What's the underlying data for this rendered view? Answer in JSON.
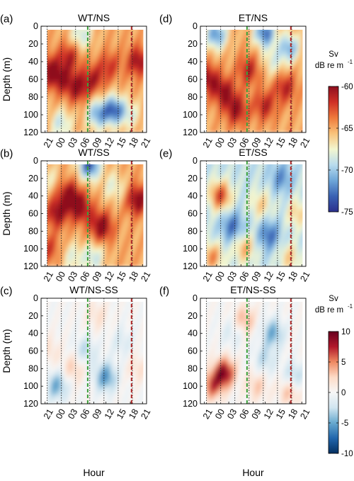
{
  "chart_data": {
    "type": "heatmap",
    "x_axis_label": "Hour",
    "y_axis_label": "Depth (m)",
    "x_tick_labels": [
      "21",
      "00",
      "03",
      "06",
      "09",
      "12",
      "15",
      "18",
      "21"
    ],
    "x_tick_hours": [
      21,
      24,
      27,
      30,
      33,
      36,
      39,
      42,
      45
    ],
    "x_range_hours": [
      20,
      46
    ],
    "y_range_m": [
      0,
      120
    ],
    "y_ticks": [
      "0",
      "20",
      "40",
      "60",
      "80",
      "100",
      "120"
    ],
    "y_tick_values": [
      0,
      20,
      40,
      60,
      80,
      100,
      120
    ],
    "vertical_dotted_hours": [
      21.5,
      25,
      28.5,
      32,
      35.5,
      39,
      42.5
    ],
    "green_dashed_hour": 31.5,
    "red_dashed_hour": 42.3,
    "panels": [
      {
        "letter": "(a)",
        "title": "WT/NS",
        "colorbar": "sv",
        "mean_sv": -65,
        "blobs": [
          {
            "t": 22,
            "d": 50,
            "v": 5
          },
          {
            "t": 25,
            "d": 60,
            "v": 4
          },
          {
            "t": 27,
            "d": 35,
            "v": 4
          },
          {
            "t": 29,
            "d": 70,
            "v": 5
          },
          {
            "t": 33,
            "d": 60,
            "v": 4
          },
          {
            "t": 37,
            "d": 45,
            "v": 3
          },
          {
            "t": 44,
            "d": 40,
            "v": 5
          },
          {
            "t": 38,
            "d": 95,
            "v": -8
          },
          {
            "t": 34,
            "d": 100,
            "v": -6
          },
          {
            "t": 25,
            "d": 110,
            "v": -4
          },
          {
            "t": 30,
            "d": 10,
            "v": -4
          },
          {
            "t": 42,
            "d": 100,
            "v": -3
          }
        ]
      },
      {
        "letter": "(b)",
        "title": "WT/SS",
        "colorbar": "sv",
        "mean_sv": -65,
        "blobs": [
          {
            "t": 27,
            "d": 40,
            "v": 6
          },
          {
            "t": 24,
            "d": 60,
            "v": 5
          },
          {
            "t": 30,
            "d": 55,
            "v": 5
          },
          {
            "t": 35,
            "d": 75,
            "v": 6
          },
          {
            "t": 44,
            "d": 45,
            "v": 6
          },
          {
            "t": 22,
            "d": 100,
            "v": 3
          },
          {
            "t": 32,
            "d": 5,
            "v": -9
          },
          {
            "t": 38,
            "d": 30,
            "v": -3
          },
          {
            "t": 28,
            "d": 110,
            "v": -3
          },
          {
            "t": 33,
            "d": 110,
            "v": -4
          },
          {
            "t": 22,
            "d": 20,
            "v": -2
          }
        ]
      },
      {
        "letter": "(c)",
        "title": "WT/NS-SS",
        "colorbar": "diff",
        "mean_sv": 0,
        "blobs": [
          {
            "t": 36,
            "d": 90,
            "v": -6
          },
          {
            "t": 24,
            "d": 100,
            "v": -5
          },
          {
            "t": 31,
            "d": 60,
            "v": -3
          },
          {
            "t": 28,
            "d": 80,
            "v": 3
          },
          {
            "t": 34,
            "d": 20,
            "v": 2
          },
          {
            "t": 44,
            "d": 80,
            "v": 2
          },
          {
            "t": 40,
            "d": 50,
            "v": -2
          },
          {
            "t": 22,
            "d": 60,
            "v": 2
          }
        ]
      },
      {
        "letter": "(d)",
        "title": "ET/NS",
        "colorbar": "sv",
        "mean_sv": -65,
        "blobs": [
          {
            "t": 22,
            "d": 60,
            "v": 5
          },
          {
            "t": 26,
            "d": 75,
            "v": 5
          },
          {
            "t": 29,
            "d": 95,
            "v": 5
          },
          {
            "t": 32,
            "d": 50,
            "v": 4
          },
          {
            "t": 36,
            "d": 90,
            "v": 4
          },
          {
            "t": 41,
            "d": 70,
            "v": 4
          },
          {
            "t": 24,
            "d": 10,
            "v": -7
          },
          {
            "t": 36,
            "d": 8,
            "v": -8
          },
          {
            "t": 42,
            "d": 25,
            "v": -6
          },
          {
            "t": 38,
            "d": 40,
            "v": -3
          }
        ]
      },
      {
        "letter": "(e)",
        "title": "ET/SS",
        "colorbar": "sv",
        "mean_sv": -69,
        "blobs": [
          {
            "t": 25,
            "d": 40,
            "v": 7
          },
          {
            "t": 23,
            "d": 110,
            "v": 5
          },
          {
            "t": 31,
            "d": 100,
            "v": 4
          },
          {
            "t": 42,
            "d": 110,
            "v": 3
          },
          {
            "t": 35,
            "d": 50,
            "v": 3
          },
          {
            "t": 28,
            "d": 75,
            "v": -4
          },
          {
            "t": 37,
            "d": 85,
            "v": -4
          },
          {
            "t": 40,
            "d": 20,
            "v": -3
          },
          {
            "t": 44,
            "d": 60,
            "v": 3
          }
        ]
      },
      {
        "letter": "(f)",
        "title": "ET/NS-SS",
        "colorbar": "diff",
        "mean_sv": 0,
        "blobs": [
          {
            "t": 26,
            "d": 85,
            "v": 9
          },
          {
            "t": 23,
            "d": 100,
            "v": 6
          },
          {
            "t": 31,
            "d": 25,
            "v": 4
          },
          {
            "t": 34,
            "d": 100,
            "v": 3
          },
          {
            "t": 38,
            "d": 40,
            "v": -5
          },
          {
            "t": 36,
            "d": 70,
            "v": -3
          },
          {
            "t": 43,
            "d": 90,
            "v": -4
          },
          {
            "t": 42,
            "d": 105,
            "v": 4
          },
          {
            "t": 28,
            "d": 40,
            "v": -2
          }
        ]
      }
    ],
    "colorbars": [
      {
        "label": "Sv",
        "unit": "dB re m",
        "superscript": "-1",
        "ticks": [
          "-60",
          "-65",
          "-70",
          "-75"
        ],
        "tick_values": [
          -60,
          -65,
          -70,
          -75
        ],
        "range": [
          -75,
          -60
        ]
      },
      {
        "label": "Sv",
        "unit": "dB re m",
        "superscript": "-1",
        "ticks": [
          "10",
          "5",
          "0",
          "-5",
          "-10"
        ],
        "tick_values": [
          10,
          5,
          0,
          -5,
          -10
        ],
        "range": [
          -10,
          10
        ]
      }
    ]
  },
  "colors": {
    "green_line": "#3aa03a",
    "red_line": "#b22a2a",
    "sv_colormap": [
      "#2b2f8c",
      "#3a62b4",
      "#6ea6d8",
      "#b9dcee",
      "#f3f6cf",
      "#f9c27a",
      "#ee7a3c",
      "#cf2f26",
      "#8e0f1f"
    ],
    "diff_colormap": [
      "#053061",
      "#2166ac",
      "#67a9cf",
      "#d1e5f0",
      "#f7f7f7",
      "#fddbc7",
      "#ef8a62",
      "#b2182b",
      "#67001f"
    ]
  }
}
